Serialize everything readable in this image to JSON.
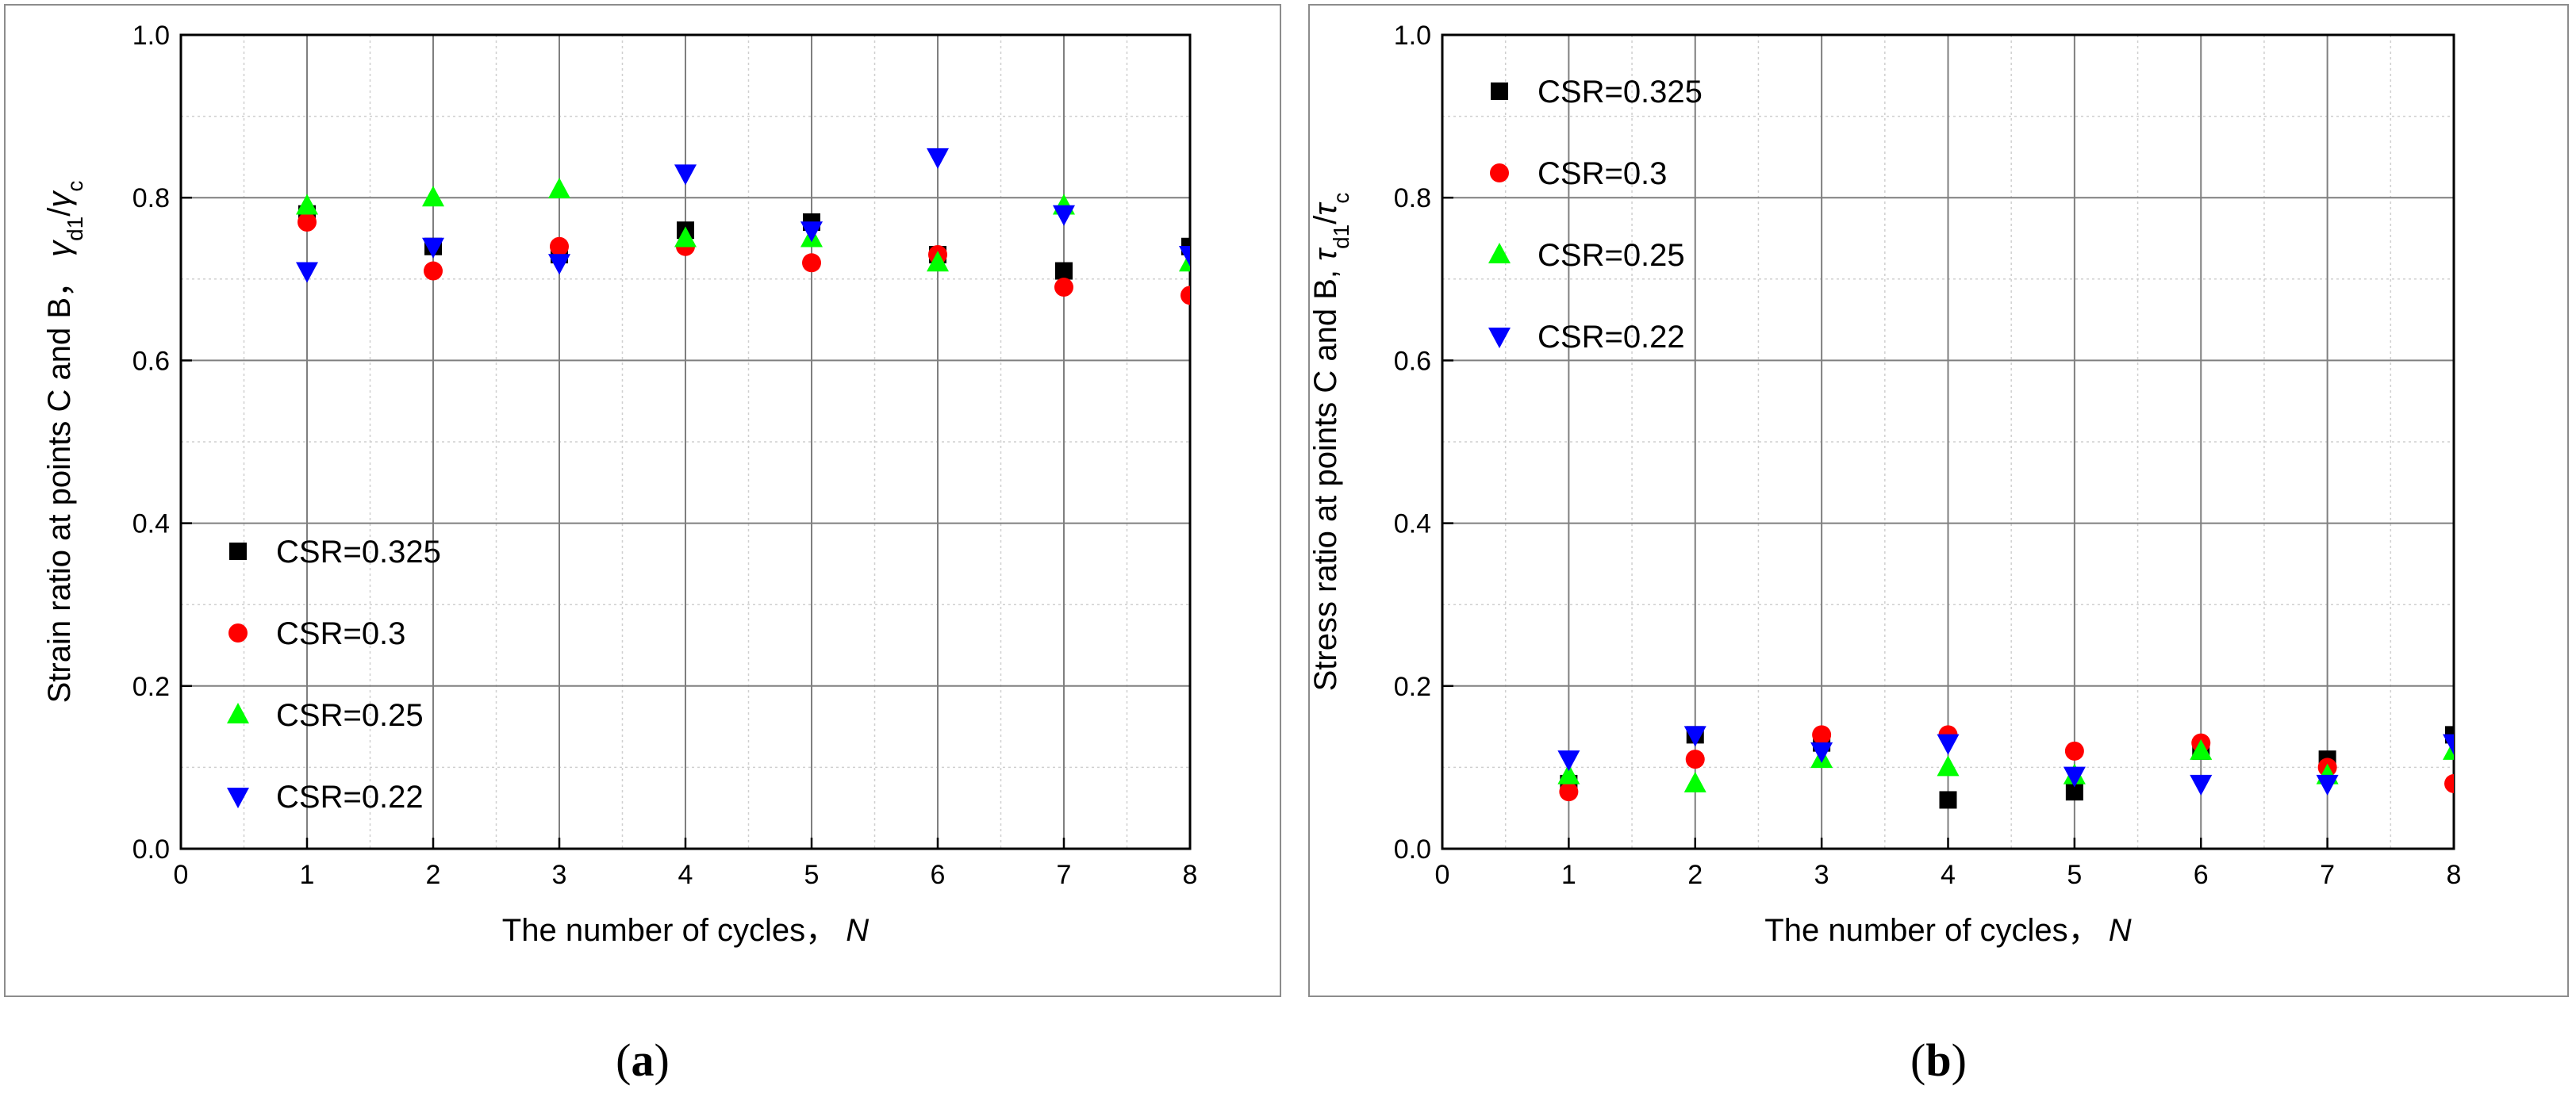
{
  "figure": {
    "panel_labels": [
      "(a)",
      "(b)"
    ]
  },
  "chart_data": [
    {
      "type": "scatter",
      "panel": "(a)",
      "xlabel": "The number of cycles，",
      "xlabel_var": "N",
      "ylabel": "Strain ratio at points C and B，",
      "ylabel_expr": {
        "num": "γ",
        "num_sub": "d1",
        "sep": "/",
        "den": "γ",
        "den_sub": "c"
      },
      "xlim": [
        0,
        8
      ],
      "ylim": [
        0.0,
        1.0
      ],
      "xticks": [
        "0",
        "1",
        "2",
        "3",
        "4",
        "5",
        "6",
        "7",
        "8"
      ],
      "yticks": [
        "0.0",
        "0.2",
        "0.4",
        "0.6",
        "0.8",
        "1.0"
      ],
      "legend_position": "lower-left",
      "x": [
        1,
        2,
        3,
        4,
        5,
        6,
        7,
        8
      ],
      "series": [
        {
          "name": "CSR=0.325",
          "marker": "square",
          "color": "#000000",
          "values": [
            0.78,
            0.74,
            0.73,
            0.76,
            0.77,
            0.73,
            0.71,
            0.74
          ]
        },
        {
          "name": "CSR=0.3",
          "marker": "circle",
          "color": "#ff0000",
          "values": [
            0.77,
            0.71,
            0.74,
            0.74,
            0.72,
            0.73,
            0.69,
            0.68
          ]
        },
        {
          "name": "CSR=0.25",
          "marker": "triangle-up",
          "color": "#00ff00",
          "values": [
            0.79,
            0.8,
            0.81,
            0.75,
            0.75,
            0.72,
            0.79,
            0.72
          ]
        },
        {
          "name": "CSR=0.22",
          "marker": "triangle-down",
          "color": "#0000ff",
          "values": [
            0.71,
            0.74,
            0.72,
            0.83,
            0.76,
            0.85,
            0.78,
            0.73
          ]
        }
      ]
    },
    {
      "type": "scatter",
      "panel": "(b)",
      "xlabel": "The number of cycles，",
      "xlabel_var": "N",
      "ylabel": "Stress ratio at points C and B,",
      "ylabel_expr": {
        "num": "τ",
        "num_sub": "d1",
        "sep": "/",
        "den": "τ",
        "den_sub": "c"
      },
      "xlim": [
        0,
        8
      ],
      "ylim": [
        0.0,
        1.0
      ],
      "xticks": [
        "0",
        "1",
        "2",
        "3",
        "4",
        "5",
        "6",
        "7",
        "8"
      ],
      "yticks": [
        "0.0",
        "0.2",
        "0.4",
        "0.6",
        "0.8",
        "1.0"
      ],
      "legend_position": "upper-left",
      "x": [
        1,
        2,
        3,
        4,
        5,
        6,
        7,
        8
      ],
      "series": [
        {
          "name": "CSR=0.325",
          "marker": "square",
          "color": "#000000",
          "values": [
            0.08,
            0.14,
            0.13,
            0.06,
            0.07,
            0.12,
            0.11,
            0.14
          ]
        },
        {
          "name": "CSR=0.3",
          "marker": "circle",
          "color": "#ff0000",
          "values": [
            0.07,
            0.11,
            0.14,
            0.14,
            0.12,
            0.13,
            0.1,
            0.08
          ]
        },
        {
          "name": "CSR=0.25",
          "marker": "triangle-up",
          "color": "#00ff00",
          "values": [
            0.09,
            0.08,
            0.11,
            0.1,
            0.09,
            0.12,
            0.09,
            0.12
          ]
        },
        {
          "name": "CSR=0.22",
          "marker": "triangle-down",
          "color": "#0000ff",
          "values": [
            0.11,
            0.14,
            0.12,
            0.13,
            0.09,
            0.08,
            0.08,
            0.13
          ]
        }
      ]
    }
  ]
}
